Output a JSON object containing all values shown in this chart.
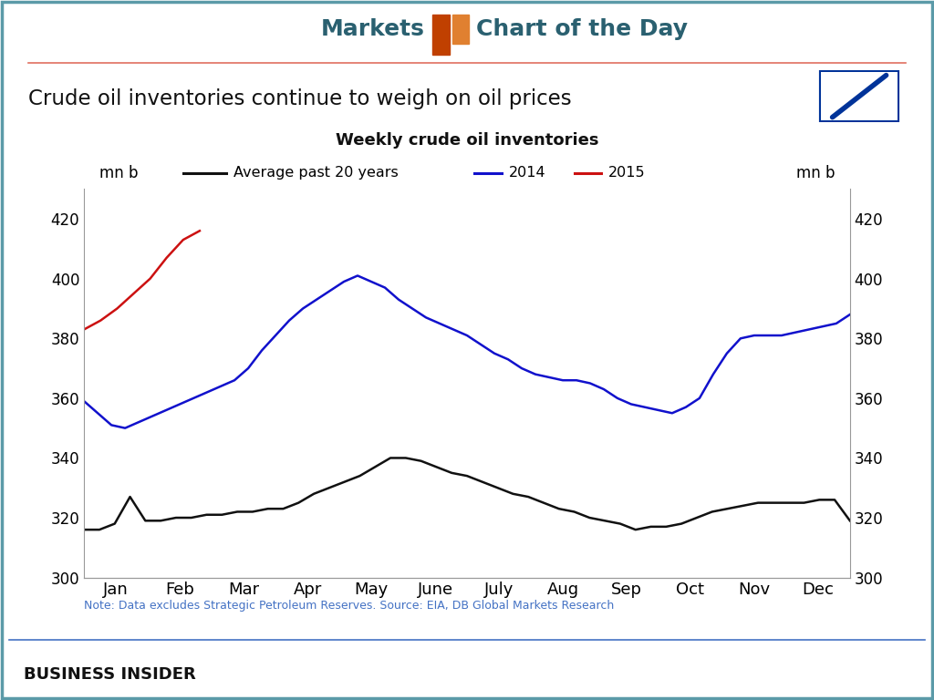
{
  "title_main": "Crude oil inventories continue to weigh on oil prices",
  "subtitle": "Weekly crude oil inventories",
  "ylabel_left": "mn b",
  "ylabel_right": "mn b",
  "ylim": [
    300,
    430
  ],
  "yticks": [
    300,
    320,
    340,
    360,
    380,
    400,
    420
  ],
  "x_labels": [
    "Jan",
    "Feb",
    "Mar",
    "Apr",
    "May",
    "June",
    "July",
    "Aug",
    "Sep",
    "Oct",
    "Nov",
    "Dec"
  ],
  "note": "Note: Data excludes Strategic Petroleum Reserves. Source: EIA, DB Global Markets Research",
  "bg_color": "#ffffff",
  "border_color": "#5b9aa8",
  "header_line_color": "#e07060",
  "avg20_color": "#111111",
  "y2014_color": "#1111cc",
  "y2015_color": "#cc1111",
  "icon_color1": "#c04000",
  "icon_color2": "#e08030",
  "header_text_color": "#2a6070",
  "note_color": "#4472c4",
  "footer_line_color": "#4472c4",
  "avg20_data": [
    316,
    316,
    318,
    327,
    319,
    319,
    320,
    320,
    321,
    321,
    322,
    322,
    323,
    323,
    325,
    328,
    330,
    332,
    334,
    337,
    340,
    340,
    339,
    337,
    335,
    334,
    332,
    330,
    328,
    327,
    325,
    323,
    322,
    320,
    319,
    318,
    316,
    317,
    317,
    318,
    320,
    322,
    323,
    324,
    325,
    325,
    325,
    325,
    326,
    326,
    319
  ],
  "y2014_data": [
    359,
    355,
    351,
    350,
    352,
    354,
    356,
    358,
    360,
    362,
    364,
    366,
    370,
    376,
    381,
    386,
    390,
    393,
    396,
    399,
    401,
    399,
    397,
    393,
    390,
    387,
    385,
    383,
    381,
    378,
    375,
    373,
    370,
    368,
    367,
    366,
    366,
    365,
    363,
    360,
    358,
    357,
    356,
    355,
    357,
    360,
    368,
    375,
    380,
    381,
    381,
    381,
    382,
    383,
    384,
    385,
    388
  ],
  "y2015_data": [
    383,
    386,
    390,
    395,
    400,
    407,
    413,
    416
  ],
  "n_total_weeks": 53
}
